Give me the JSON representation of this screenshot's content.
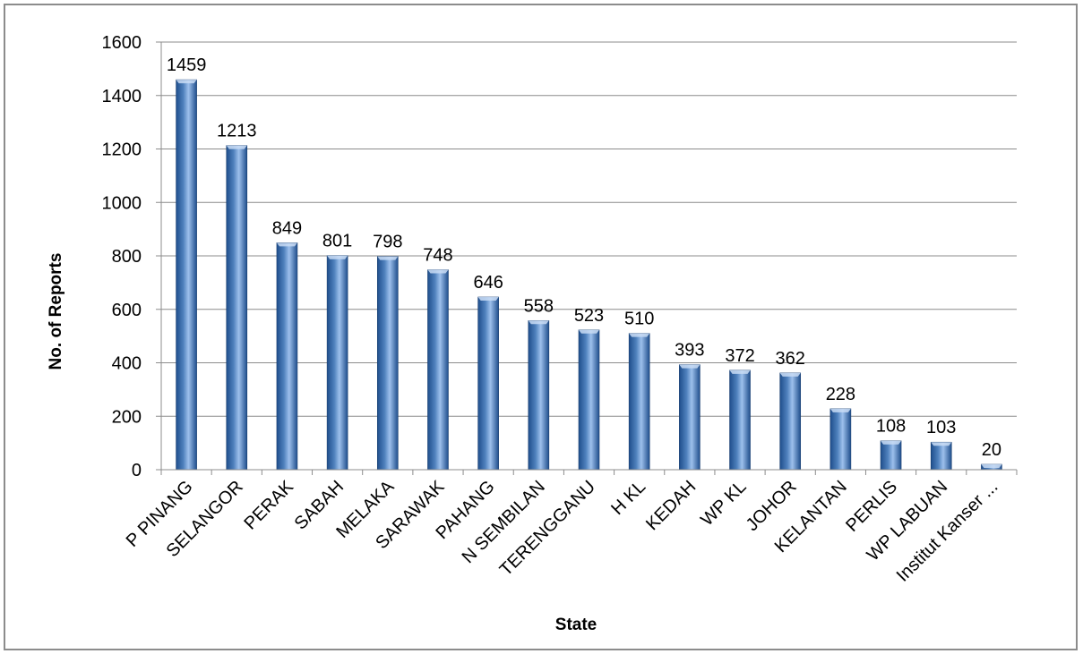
{
  "chart_data": {
    "type": "bar",
    "title": "",
    "xlabel": "State",
    "ylabel": "No. of Reports",
    "ylim": [
      0,
      1600
    ],
    "ytick_step": 200,
    "grid": true,
    "legend": "none",
    "categories": [
      "P PINANG",
      "SELANGOR",
      "PERAK",
      "SABAH",
      "MELAKA",
      "SARAWAK",
      "PAHANG",
      "N SEMBILAN",
      "TERENGGANU",
      "H KL",
      "KEDAH",
      "WP KL",
      "JOHOR",
      "KELANTAN",
      "PERLIS",
      "WP LABUAN",
      "Institut Kanser ..."
    ],
    "values": [
      1459,
      1213,
      849,
      801,
      798,
      748,
      646,
      558,
      523,
      510,
      393,
      372,
      362,
      228,
      108,
      103,
      20
    ],
    "data_labels": [
      "1459",
      "1213",
      "849",
      "801",
      "798",
      "748",
      "646",
      "558",
      "523",
      "510",
      "393",
      "372",
      "362",
      "228",
      "108",
      "103",
      "20"
    ],
    "colors": {
      "bar_dark": "#1f4e8c",
      "bar_mid": "#4f81bd",
      "bar_light": "#9dc0ec",
      "grid": "#8c8c8c",
      "frame": "#8c8c8c"
    }
  }
}
